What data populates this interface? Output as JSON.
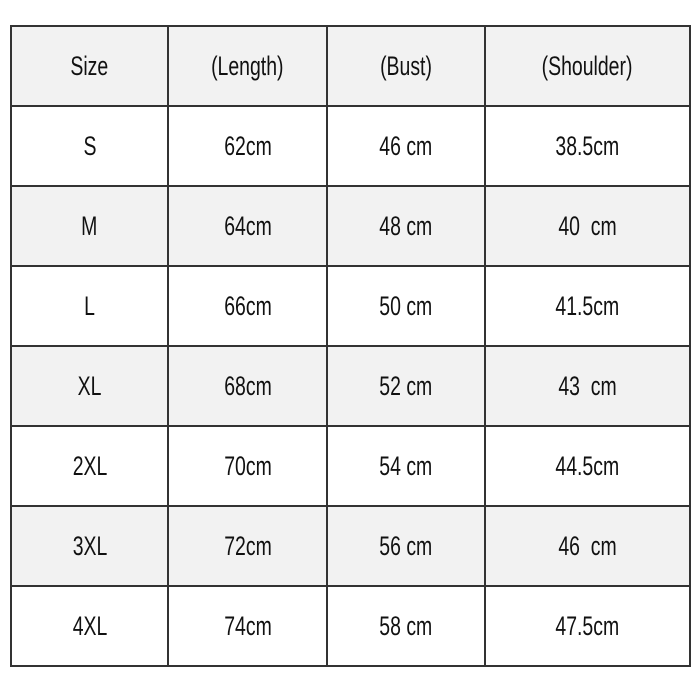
{
  "headers": [
    "Size",
    "(Length)",
    "(Bust)",
    "(Shoulder)"
  ],
  "rows": [
    [
      "S",
      "62cm",
      "46 cm",
      "38.5cm"
    ],
    [
      "M",
      "64cm",
      "48 cm",
      "40  cm"
    ],
    [
      "L",
      "66cm",
      "50 cm",
      "41.5cm"
    ],
    [
      "XL",
      "68cm",
      "52 cm",
      "43  cm"
    ],
    [
      "2XL",
      "70cm",
      "54 cm",
      "44.5cm"
    ],
    [
      "3XL",
      "72cm",
      "56 cm",
      "46  cm"
    ],
    [
      "4XL",
      "74cm",
      "58 cm",
      "47.5cm"
    ]
  ],
  "colors": {
    "shade": "#f2f2f2",
    "border": "#333333"
  }
}
